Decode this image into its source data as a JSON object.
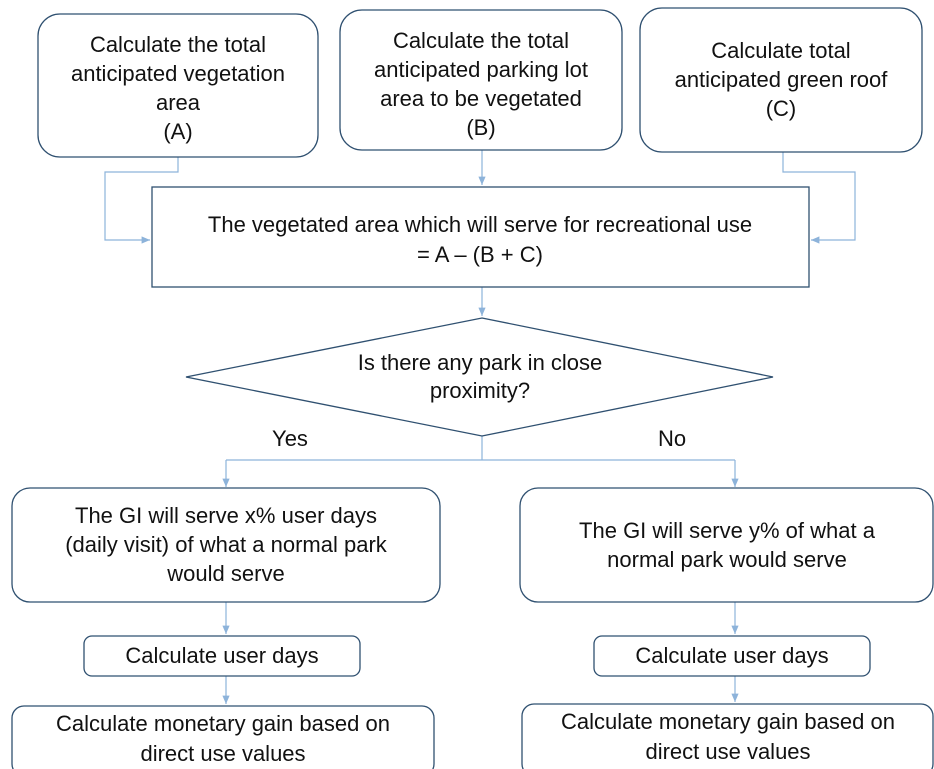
{
  "nodes": [
    {
      "lines": [
        "Calculate the total",
        "anticipated vegetation",
        "area",
        "(A)"
      ]
    },
    {
      "lines": [
        "Calculate the total",
        "anticipated parking lot",
        "area to be vegetated",
        "(B)"
      ]
    },
    {
      "lines": [
        "Calculate total",
        "anticipated green roof",
        "(C)"
      ]
    },
    {
      "lines": [
        "The vegetated area which will serve for recreational use",
        "= A – (B + C)"
      ]
    },
    {
      "lines": [
        "Is there any park in close",
        "proximity?"
      ]
    },
    {
      "lines": [
        "The GI will serve x% user days",
        "(daily visit) of what a normal park",
        "would serve"
      ]
    },
    {
      "lines": [
        "The GI will serve y% of what a",
        "normal park would serve"
      ]
    },
    {
      "lines": [
        "Calculate user days"
      ]
    },
    {
      "lines": [
        "Calculate user days"
      ]
    },
    {
      "lines": [
        "Calculate monetary gain based on",
        "direct use values"
      ]
    },
    {
      "lines": [
        "Calculate monetary gain based on",
        "direct use values"
      ]
    }
  ],
  "edges": [
    {
      "label": "Yes"
    },
    {
      "label": "No"
    }
  ]
}
